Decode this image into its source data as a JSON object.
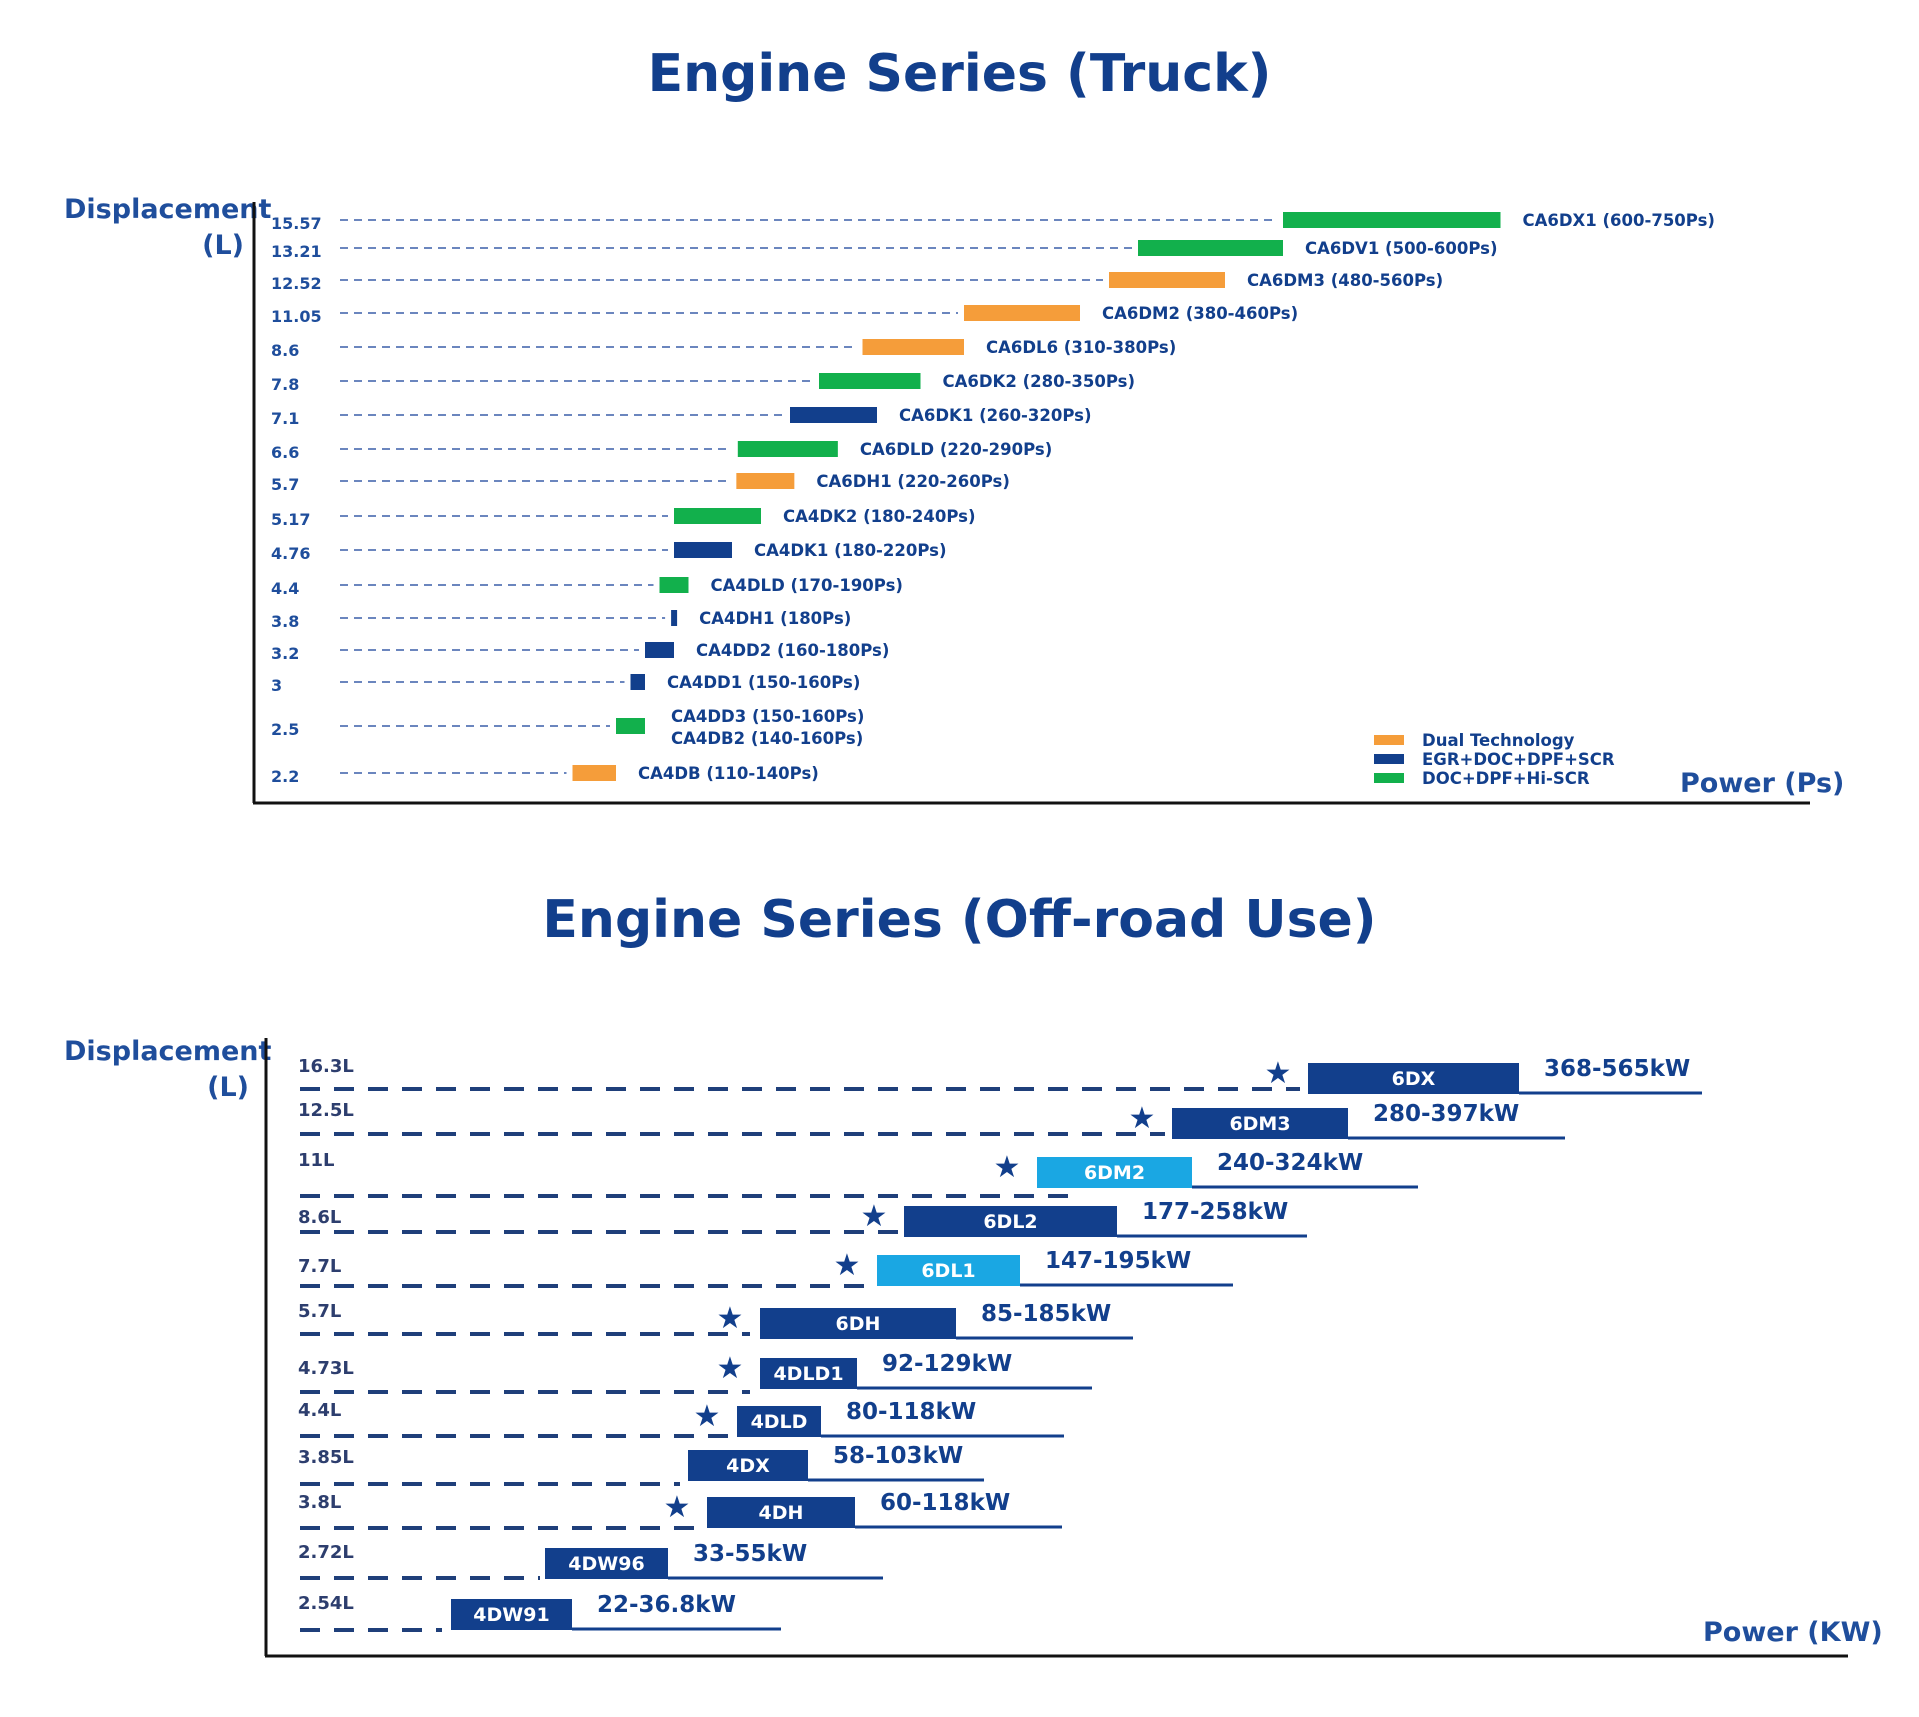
{
  "colors": {
    "title": "#123f8c",
    "label": "#1f4e9c",
    "orange": "#f59d3a",
    "navy": "#123f8c",
    "green": "#12b04c",
    "lightblue": "#1aa7e3"
  },
  "chart_data": [
    {
      "type": "bar",
      "title": "Engine Series (Truck)",
      "ylabel": "Displacement (L)",
      "xlabel": "Power (Ps)",
      "legend": [
        {
          "label": "Dual Technology",
          "color": "orange"
        },
        {
          "label": "EGR+DOC+DPF+SCR",
          "color": "navy"
        },
        {
          "label": "DOC+DPF+Hi-SCR",
          "color": "green"
        }
      ],
      "legend_position": "bottom-right",
      "rows": [
        {
          "disp": "15.57",
          "labels": [
            "CA6DX1  (600-750Ps)"
          ],
          "min": 600,
          "max": 750,
          "color": "green"
        },
        {
          "disp": "13.21",
          "labels": [
            "CA6DV1  (500-600Ps)"
          ],
          "min": 500,
          "max": 600,
          "color": "green"
        },
        {
          "disp": "12.52",
          "labels": [
            "CA6DM3  (480-560Ps)"
          ],
          "min": 480,
          "max": 560,
          "color": "orange"
        },
        {
          "disp": "11.05",
          "labels": [
            "CA6DM2 (380-460Ps)"
          ],
          "min": 380,
          "max": 460,
          "color": "orange"
        },
        {
          "disp": "8.6",
          "labels": [
            "CA6DL6 (310-380Ps)"
          ],
          "min": 310,
          "max": 380,
          "color": "orange"
        },
        {
          "disp": "7.8",
          "labels": [
            "CA6DK2 (280-350Ps)"
          ],
          "min": 280,
          "max": 350,
          "color": "green"
        },
        {
          "disp": "7.1",
          "labels": [
            "CA6DK1 (260-320Ps)"
          ],
          "min": 260,
          "max": 320,
          "color": "navy"
        },
        {
          "disp": "6.6",
          "labels": [
            "CA6DLD (220-290Ps)"
          ],
          "min": 224,
          "max": 293,
          "color": "green"
        },
        {
          "disp": "5.7",
          "labels": [
            "CA6DH1 (220-260Ps)"
          ],
          "min": 223,
          "max": 263,
          "color": "orange"
        },
        {
          "disp": "5.17",
          "labels": [
            "CA4DK2 (180-240Ps)"
          ],
          "min": 180,
          "max": 240,
          "color": "green"
        },
        {
          "disp": "4.76",
          "labels": [
            "CA4DK1 (180-220Ps)"
          ],
          "min": 180,
          "max": 220,
          "color": "navy"
        },
        {
          "disp": "4.4",
          "labels": [
            "CA4DLD (170-190Ps)"
          ],
          "min": 170,
          "max": 190,
          "color": "green"
        },
        {
          "disp": "3.8",
          "labels": [
            "CA4DH1 (180Ps)"
          ],
          "min": 178,
          "max": 180,
          "color": "navy"
        },
        {
          "disp": "3.2",
          "labels": [
            "CA4DD2 (160-180Ps)"
          ],
          "min": 160,
          "max": 180,
          "color": "navy"
        },
        {
          "disp": "3",
          "labels": [
            "CA4DD1 (150-160Ps)"
          ],
          "min": 150,
          "max": 160,
          "color": "navy"
        },
        {
          "disp": "2.5",
          "labels": [
            "CA4DD3 (150-160Ps)",
            "CA4DB2 (140-160Ps)"
          ],
          "min": 140,
          "max": 160,
          "color": "green"
        },
        {
          "disp": "2.2",
          "labels": [
            "CA4DB (110-140Ps)"
          ],
          "min": 110,
          "max": 140,
          "color": "orange"
        }
      ]
    },
    {
      "type": "bar",
      "title": "Engine Series (Off-road Use)",
      "ylabel": "Displacement (L)",
      "xlabel": "Power (KW)",
      "rows": [
        {
          "disp": "16.3L",
          "model": "6DX",
          "range": "368-565kW",
          "min": 368,
          "max": 565,
          "color": "navy",
          "star": true
        },
        {
          "disp": "12.5L",
          "model": "6DM3",
          "range": "280-397kW",
          "min": 280,
          "max": 397,
          "color": "navy",
          "star": true
        },
        {
          "disp": "11L",
          "model": "6DM2",
          "range": "240-324kW",
          "min": 240,
          "max": 324,
          "color": "lightblue",
          "star": true
        },
        {
          "disp": "8.6L",
          "model": "6DL2",
          "range": "177-258kW",
          "min": 177,
          "max": 258,
          "color": "navy",
          "star": true
        },
        {
          "disp": "7.7L",
          "model": "6DL1",
          "range": "147-195kW",
          "min": 147,
          "max": 195,
          "color": "lightblue",
          "star": true
        },
        {
          "disp": "5.7L",
          "model": "6DH",
          "range": "85-185kW",
          "min": 85,
          "max": 185,
          "color": "navy",
          "star": true
        },
        {
          "disp": "4.73L",
          "model": "4DLD1",
          "range": "92-129kW",
          "min": 92,
          "max": 129,
          "color": "navy",
          "star": true
        },
        {
          "disp": "4.4L",
          "model": "4DLD",
          "range": "80-118kW",
          "min": 80,
          "max": 118,
          "color": "navy",
          "star": true
        },
        {
          "disp": "3.85L",
          "model": "4DX",
          "range": "58-103kW",
          "min": 58,
          "max": 103,
          "color": "navy",
          "star": false
        },
        {
          "disp": "3.8L",
          "model": "4DH",
          "range": "60-118kW",
          "min": 60,
          "max": 118,
          "color": "navy",
          "star": true
        },
        {
          "disp": "2.72L",
          "model": "4DW96",
          "range": "33-55kW",
          "min": 33,
          "max": 55,
          "color": "navy",
          "star": false
        },
        {
          "disp": "2.54L",
          "model": "4DW91",
          "range": "22-36.8kW",
          "min": 22,
          "max": 36.8,
          "color": "navy",
          "star": false
        }
      ]
    }
  ]
}
